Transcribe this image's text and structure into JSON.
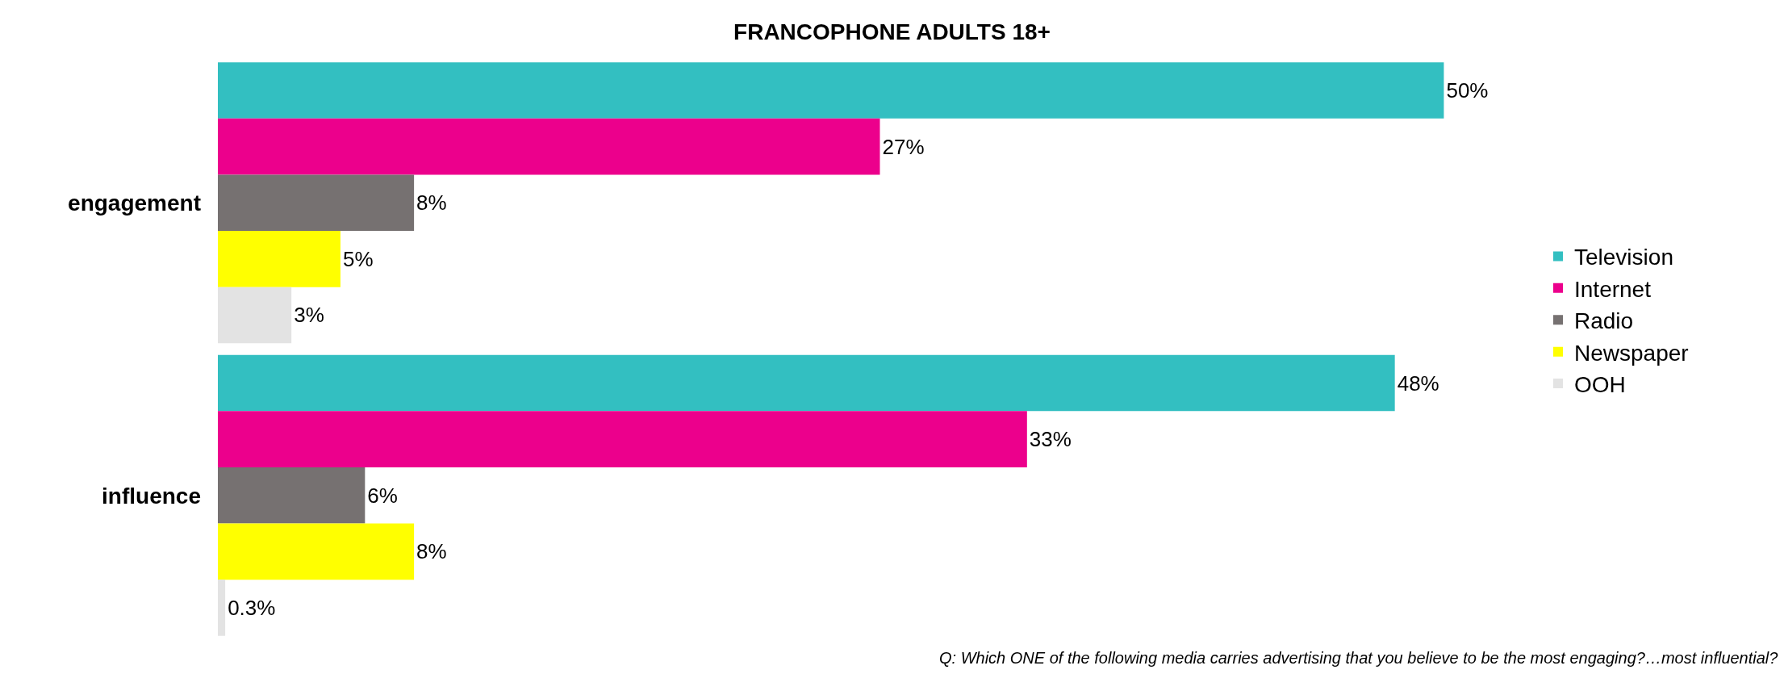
{
  "chart_data": {
    "type": "bar",
    "orientation": "horizontal",
    "title": "FRANCOPHONE ADULTS 18+",
    "categories": [
      "engagement",
      "influence"
    ],
    "series": [
      {
        "name": "Television",
        "color": "#33bfc1",
        "values": [
          50,
          48
        ],
        "value_labels": [
          "50%",
          "48%"
        ]
      },
      {
        "name": "Internet",
        "color": "#ec008c",
        "values": [
          27,
          33
        ],
        "value_labels": [
          "27%",
          "33%"
        ]
      },
      {
        "name": "Radio",
        "color": "#767171",
        "values": [
          8,
          6
        ],
        "value_labels": [
          "8%",
          "6%"
        ]
      },
      {
        "name": "Newspaper",
        "color": "#ffff00",
        "values": [
          5,
          8
        ],
        "value_labels": [
          "5%",
          "8%"
        ]
      },
      {
        "name": "OOH",
        "color": "#e3e3e3",
        "values": [
          3,
          0.3
        ],
        "value_labels": [
          "3%",
          "0.3%"
        ]
      }
    ],
    "legend": "right",
    "annotations": [
      "Q: Which ONE of the following media carries advertising that you believe to be the most engaging?…most influential?"
    ]
  }
}
